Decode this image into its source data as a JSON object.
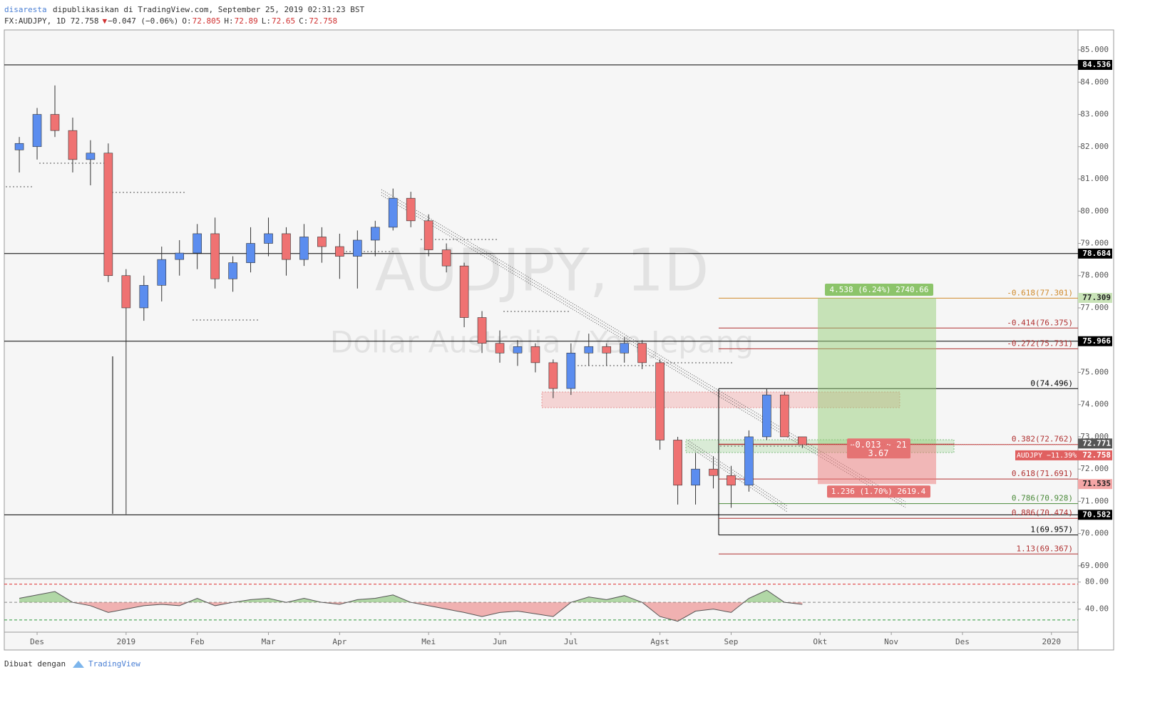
{
  "header": {
    "author": "disaresta",
    "published": "dipublikasikan di TradingView.com, September 25, 2019 02:31:23 BST",
    "symbol": "FX:AUDJPY, 1D 72.758",
    "arrow": "▼",
    "change": "−0.047 (−0.06%)",
    "open_label": "O:",
    "open": 72.805,
    "high_label": "H:",
    "high": 72.89,
    "low_label": "L:",
    "low": 72.65,
    "close_label": "C:",
    "close": 72.758
  },
  "footer": {
    "made_with": "Dibuat dengan",
    "brand": "TradingView"
  },
  "chart_data": {
    "type": "candlestick",
    "watermark": "AUDJPY, 1D",
    "watermark_sub": "Dollar Australia / Yen Jepang",
    "categories": [
      null,
      "Des",
      null,
      null,
      null,
      null,
      "2019",
      null,
      null,
      null,
      "Feb",
      null,
      null,
      null,
      "Mar",
      null,
      null,
      null,
      "Apr",
      null,
      null,
      null,
      null,
      "Mei",
      null,
      null,
      null,
      "Jun",
      null,
      null,
      null,
      "Jul",
      null,
      null,
      null,
      null,
      "Agst",
      null,
      null,
      null,
      "Sep",
      null,
      null,
      null,
      null,
      "Okt",
      null,
      null,
      null,
      "Nov",
      null,
      null,
      null,
      "Des",
      null,
      null,
      null,
      null,
      "2020",
      null
    ],
    "open": [
      81.9,
      82.0,
      83.0,
      82.5,
      81.6,
      81.8,
      78.0,
      77.0,
      77.7,
      78.5,
      78.7,
      79.3,
      77.9,
      78.4,
      79.0,
      79.3,
      78.5,
      79.2,
      78.9,
      78.6,
      79.1,
      79.5,
      80.4,
      79.7,
      78.8,
      78.3,
      76.7,
      75.9,
      75.6,
      75.8,
      75.3,
      74.5,
      75.6,
      75.8,
      75.6,
      75.9,
      75.3,
      72.9,
      71.5,
      72.0,
      71.8,
      71.5,
      73.0,
      74.3,
      73.0,
      null,
      null,
      null,
      null,
      null,
      null,
      null,
      null,
      null,
      null,
      null,
      null,
      null,
      null,
      null
    ],
    "high": [
      82.3,
      83.2,
      83.9,
      82.9,
      82.2,
      82.1,
      78.2,
      78.0,
      78.9,
      79.1,
      79.6,
      79.8,
      78.6,
      79.5,
      79.8,
      79.5,
      79.6,
      79.5,
      79.3,
      79.4,
      79.7,
      80.7,
      80.6,
      79.9,
      79.0,
      78.4,
      76.9,
      76.3,
      76.0,
      75.9,
      75.4,
      75.9,
      76.2,
      75.9,
      76.1,
      76.0,
      75.4,
      73.0,
      72.5,
      72.4,
      72.1,
      73.2,
      74.5,
      74.4,
      73.0,
      null,
      null,
      null,
      null,
      null,
      null,
      null,
      null,
      null,
      null,
      null,
      null,
      null,
      null,
      null
    ],
    "low": [
      81.2,
      81.6,
      82.3,
      81.2,
      80.8,
      77.8,
      70.6,
      76.6,
      77.2,
      78.0,
      78.2,
      77.6,
      77.5,
      78.1,
      78.6,
      78.0,
      78.3,
      78.4,
      77.9,
      77.6,
      78.6,
      79.4,
      79.5,
      78.6,
      78.1,
      76.4,
      75.6,
      75.3,
      75.2,
      75.0,
      74.2,
      74.3,
      75.2,
      75.2,
      75.3,
      75.1,
      72.6,
      70.9,
      70.9,
      71.4,
      70.8,
      71.3,
      72.9,
      73.0,
      72.65,
      null,
      null,
      null,
      null,
      null,
      null,
      null,
      null,
      null,
      null,
      null,
      null,
      null,
      null,
      null
    ],
    "close": [
      82.1,
      83.0,
      82.5,
      81.6,
      81.8,
      78.0,
      77.0,
      77.7,
      78.5,
      78.7,
      79.3,
      77.9,
      78.4,
      79.0,
      79.3,
      78.5,
      79.2,
      78.9,
      78.6,
      79.1,
      79.5,
      80.4,
      79.7,
      78.8,
      78.3,
      76.7,
      75.9,
      75.6,
      75.8,
      75.3,
      74.5,
      75.6,
      75.8,
      75.6,
      75.9,
      75.3,
      72.9,
      71.5,
      72.0,
      71.8,
      71.5,
      73.0,
      74.3,
      73.0,
      72.758,
      null,
      null,
      null,
      null,
      null,
      null,
      null,
      null,
      null,
      null,
      null,
      null,
      null,
      null,
      null
    ],
    "up_color": "#5b8def",
    "down_color": "#ef7272",
    "ylim": [
      68.6,
      85.62
    ],
    "yticks": [
      {
        "value": 69,
        "label": "69.000"
      },
      {
        "value": 70,
        "label": "70.000"
      },
      {
        "value": 71,
        "label": "71.000"
      },
      {
        "value": 72,
        "label": "72.000"
      },
      {
        "value": 73,
        "label": "73.000"
      },
      {
        "value": 74,
        "label": "74.000"
      },
      {
        "value": 75,
        "label": "75.000"
      },
      {
        "value": 76,
        "label": "76.000"
      },
      {
        "value": 77,
        "label": "77.000"
      },
      {
        "value": 78,
        "label": "78.000"
      },
      {
        "value": 79,
        "label": "79.000"
      },
      {
        "value": 80,
        "label": "80.000"
      },
      {
        "value": 81,
        "label": "81.000"
      },
      {
        "value": 82,
        "label": "82.000"
      },
      {
        "value": 83,
        "label": "83.000"
      },
      {
        "value": 84,
        "label": "84.000"
      },
      {
        "value": 85,
        "label": "85.000"
      }
    ],
    "price_tags": [
      {
        "value": 84.536,
        "color": "#000000",
        "text_color": "#ffffff",
        "line": true
      },
      {
        "value": 78.684,
        "color": "#000000",
        "text_color": "#ffffff",
        "line": true
      },
      {
        "value": 77.309,
        "color": "#c9e3b8",
        "text_color": "#222222",
        "line": false
      },
      {
        "value": 75.966,
        "color": "#000000",
        "text_color": "#ffffff",
        "line": true
      },
      {
        "value": 72.771,
        "color": "#555555",
        "text_color": "#ffffff",
        "line": false
      },
      {
        "value": 71.535,
        "color": "#f4a6a6",
        "text_color": "#222222",
        "line": false
      },
      {
        "value": 70.582,
        "color": "#000000",
        "text_color": "#ffffff",
        "line": true
      }
    ],
    "last_price": {
      "value": 72.758,
      "name": "AUDJPY −11.39%",
      "color": "#e06060"
    },
    "fib_levels": [
      {
        "label": "-0.618(77.301)",
        "value": 77.301,
        "color": "#d08a2c"
      },
      {
        "label": "-0.414(76.375)",
        "value": 76.375,
        "color": "#b03030"
      },
      {
        "label": "-0.272(75.731)",
        "value": 75.731,
        "color": "#b03030"
      },
      {
        "label": "0(74.496)",
        "value": 74.496,
        "color": "#000000"
      },
      {
        "label": "0.382(72.762)",
        "value": 72.762,
        "color": "#b03030"
      },
      {
        "label": "0.618(71.691)",
        "value": 71.691,
        "color": "#b03030"
      },
      {
        "label": "0.786(70.928)",
        "value": 70.928,
        "color": "#4b8a3a"
      },
      {
        "label": "0.886(70.474)",
        "value": 70.474,
        "color": "#b03030"
      },
      {
        "label": "1(69.957)",
        "value": 69.957,
        "color": "#000000"
      },
      {
        "label": "1.13(69.367)",
        "value": 69.367,
        "color": "#b03030"
      }
    ],
    "position": {
      "entry": 72.771,
      "target": 77.309,
      "stop": 71.535,
      "target_label": "4.538 (6.24%) 2740.66",
      "stop_label": "1.236 (1.70%) 2619.4",
      "status_label": "−0.013 ~ 21",
      "ratio_label": "3.67"
    },
    "rsi": {
      "values": [
        56,
        61,
        66,
        50,
        45,
        35,
        40,
        45,
        47,
        45,
        56,
        45,
        50,
        54,
        56,
        50,
        56,
        50,
        47,
        54,
        56,
        61,
        50,
        45,
        40,
        35,
        29,
        35,
        37,
        33,
        29,
        50,
        58,
        54,
        60,
        50,
        29,
        22,
        37,
        40,
        35,
        56,
        68,
        50,
        47,
        null,
        null,
        null,
        null,
        null,
        null,
        null,
        null,
        null,
        null,
        null,
        null,
        null,
        null,
        null
      ],
      "ylim": [
        8,
        85
      ],
      "yticks": [
        {
          "value": 80,
          "label": "80.00"
        },
        {
          "value": 40,
          "label": "40.00"
        }
      ],
      "levels": [
        77,
        50,
        24
      ],
      "level_colors": [
        "#e03030",
        "#888888",
        "#2e9a3a"
      ],
      "baseline": 50
    }
  }
}
